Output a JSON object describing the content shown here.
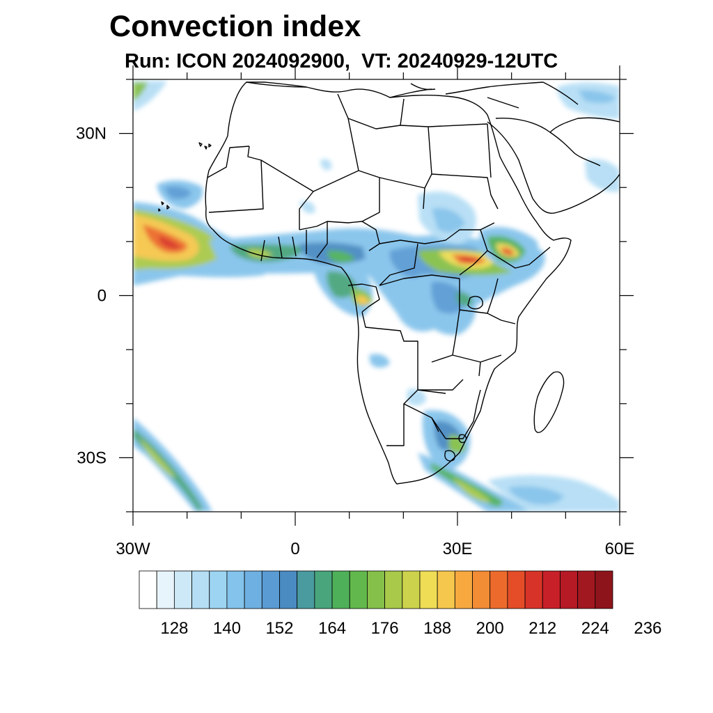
{
  "title": "Convection index",
  "subtitle": "Run: ICON 2024092900,  VT: 20240929-12UTC",
  "map": {
    "extent": {
      "lon": [
        -30,
        60
      ],
      "lat": [
        -40,
        40
      ]
    },
    "lat_labels": [
      {
        "lat": 30,
        "text": "30N"
      },
      {
        "lat": 0,
        "text": "0"
      },
      {
        "lat": -30,
        "text": "30S"
      }
    ],
    "lon_labels": [
      {
        "lon": -30,
        "text": "30W"
      },
      {
        "lon": 0,
        "text": "0"
      },
      {
        "lon": 30,
        "text": "30E"
      },
      {
        "lon": 60,
        "text": "60E"
      }
    ],
    "minor_lat_ticks": [
      -40,
      -20,
      -10,
      10,
      20,
      40
    ],
    "minor_lon_ticks": [
      -20,
      -10,
      10,
      20,
      40,
      50
    ]
  },
  "colorbar": {
    "colors": [
      "#ffffff",
      "#e8f4fb",
      "#cde9f7",
      "#b5def5",
      "#9dd4f2",
      "#84c3eb",
      "#6eb0e1",
      "#5a9bd4",
      "#4a8bc2",
      "#4a9ba0",
      "#48a57c",
      "#4fb05a",
      "#62b84c",
      "#85c04a",
      "#a8c94a",
      "#cdd24c",
      "#eedd55",
      "#f5c74c",
      "#f7a940",
      "#f28c35",
      "#ec6b2c",
      "#e44d27",
      "#d83328",
      "#c82028",
      "#b51a25",
      "#a21820",
      "#8e141c"
    ],
    "labels": [
      {
        "after_box": 2,
        "text": "128"
      },
      {
        "after_box": 5,
        "text": "140"
      },
      {
        "after_box": 8,
        "text": "152"
      },
      {
        "after_box": 11,
        "text": "164"
      },
      {
        "after_box": 14,
        "text": "176"
      },
      {
        "after_box": 17,
        "text": "188"
      },
      {
        "after_box": 20,
        "text": "200"
      },
      {
        "after_box": 23,
        "text": "212"
      },
      {
        "after_box": 26,
        "text": "224"
      },
      {
        "after_box": 29,
        "text": "236"
      }
    ]
  }
}
